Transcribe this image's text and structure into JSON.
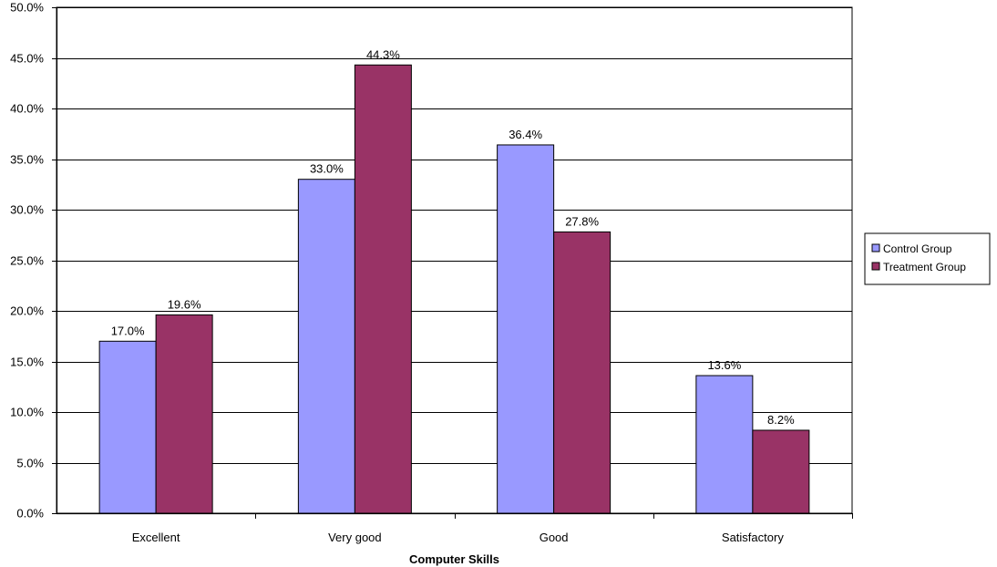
{
  "chart_data": {
    "type": "bar",
    "title": "",
    "xlabel": "Computer Skills",
    "ylabel": "",
    "categories": [
      "Excellent",
      "Very good",
      "Good",
      "Satisfactory"
    ],
    "series": [
      {
        "name": "Control Group",
        "color": "#9999ff",
        "values": [
          17.0,
          33.0,
          36.4,
          13.6
        ],
        "labels": [
          "17.0%",
          "33.0%",
          "36.4%",
          "13.6%"
        ]
      },
      {
        "name": "Treatment Group",
        "color": "#993366",
        "values": [
          19.6,
          44.3,
          27.8,
          8.2
        ],
        "labels": [
          "19.6%",
          "44.3%",
          "27.8%",
          "8.2%"
        ]
      }
    ],
    "ylim": [
      0,
      50
    ],
    "yticks": [
      0,
      5,
      10,
      15,
      20,
      25,
      30,
      35,
      40,
      45,
      50
    ],
    "ytick_labels": [
      "0.0%",
      "5.0%",
      "10.0%",
      "15.0%",
      "20.0%",
      "25.0%",
      "30.0%",
      "35.0%",
      "40.0%",
      "45.0%",
      "50.0%"
    ],
    "grid": true,
    "legend_position": "right"
  }
}
